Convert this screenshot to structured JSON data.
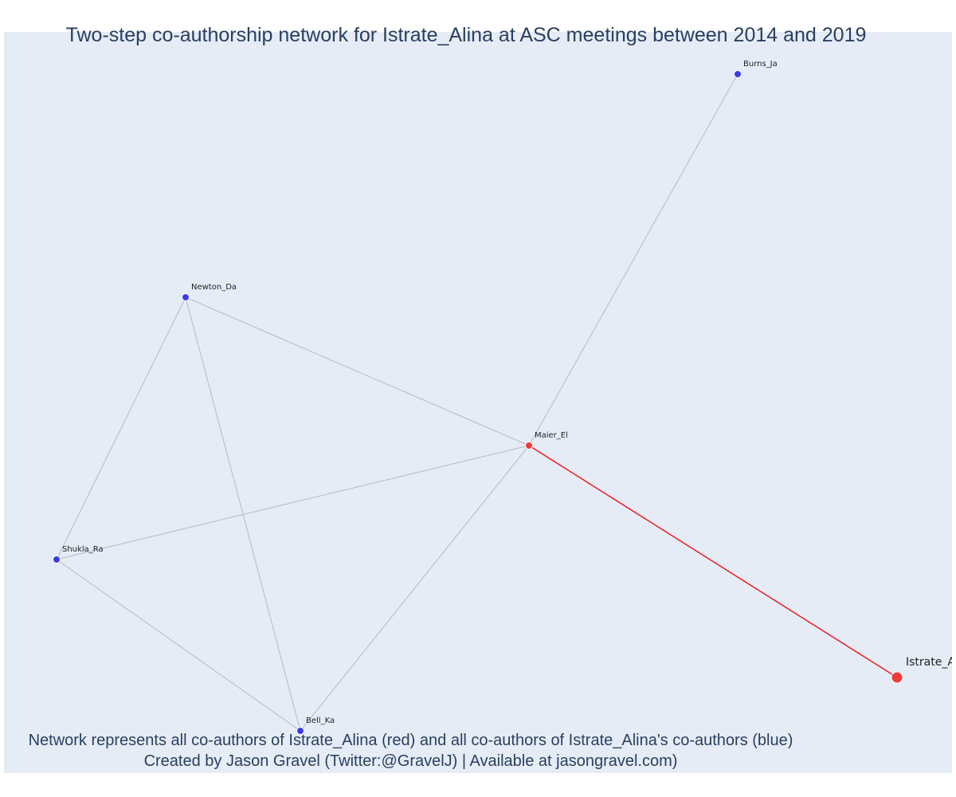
{
  "title": "Two-step co-authorship network for Istrate_Alina at ASC meetings between 2014 and 2019",
  "captions": {
    "line1": "Network represents all co-authors of Istrate_Alina (red) and all co-authors of Istrate_Alina's co-authors (blue)",
    "line2": "Created by Jason Gravel (Twitter:@GravelJ) | Available at jasongravel.com)"
  },
  "colors": {
    "plot_bg": "#e5ecf6",
    "text": "#2a3f5f",
    "direct_node": "#ee3b3b",
    "second_node": "#3c3ce6",
    "edge": "#b8b8c6",
    "focus_edge": "#ee1c1c"
  },
  "network": {
    "focus": "Istrate_Alina",
    "nodes": [
      {
        "id": "Burns_Ja",
        "label": "Burns_Ja",
        "group": "second"
      },
      {
        "id": "Newton_Da",
        "label": "Newton_Da",
        "group": "second"
      },
      {
        "id": "Maier_El",
        "label": "Maier_El",
        "group": "direct"
      },
      {
        "id": "Shukla_Ra",
        "label": "Shukla_Ra",
        "group": "second"
      },
      {
        "id": "Bell_Ka",
        "label": "Bell_Ka",
        "group": "second"
      },
      {
        "id": "Istrate_Alina",
        "label": "Istrate_Alina",
        "group": "focus"
      }
    ],
    "edges": [
      {
        "source": "Burns_Ja",
        "target": "Maier_El"
      },
      {
        "source": "Newton_Da",
        "target": "Maier_El"
      },
      {
        "source": "Newton_Da",
        "target": "Shukla_Ra"
      },
      {
        "source": "Newton_Da",
        "target": "Bell_Ka"
      },
      {
        "source": "Shukla_Ra",
        "target": "Maier_El"
      },
      {
        "source": "Shukla_Ra",
        "target": "Bell_Ka"
      },
      {
        "source": "Bell_Ka",
        "target": "Maier_El"
      },
      {
        "source": "Maier_El",
        "target": "Istrate_Alina",
        "focus": true
      }
    ]
  }
}
